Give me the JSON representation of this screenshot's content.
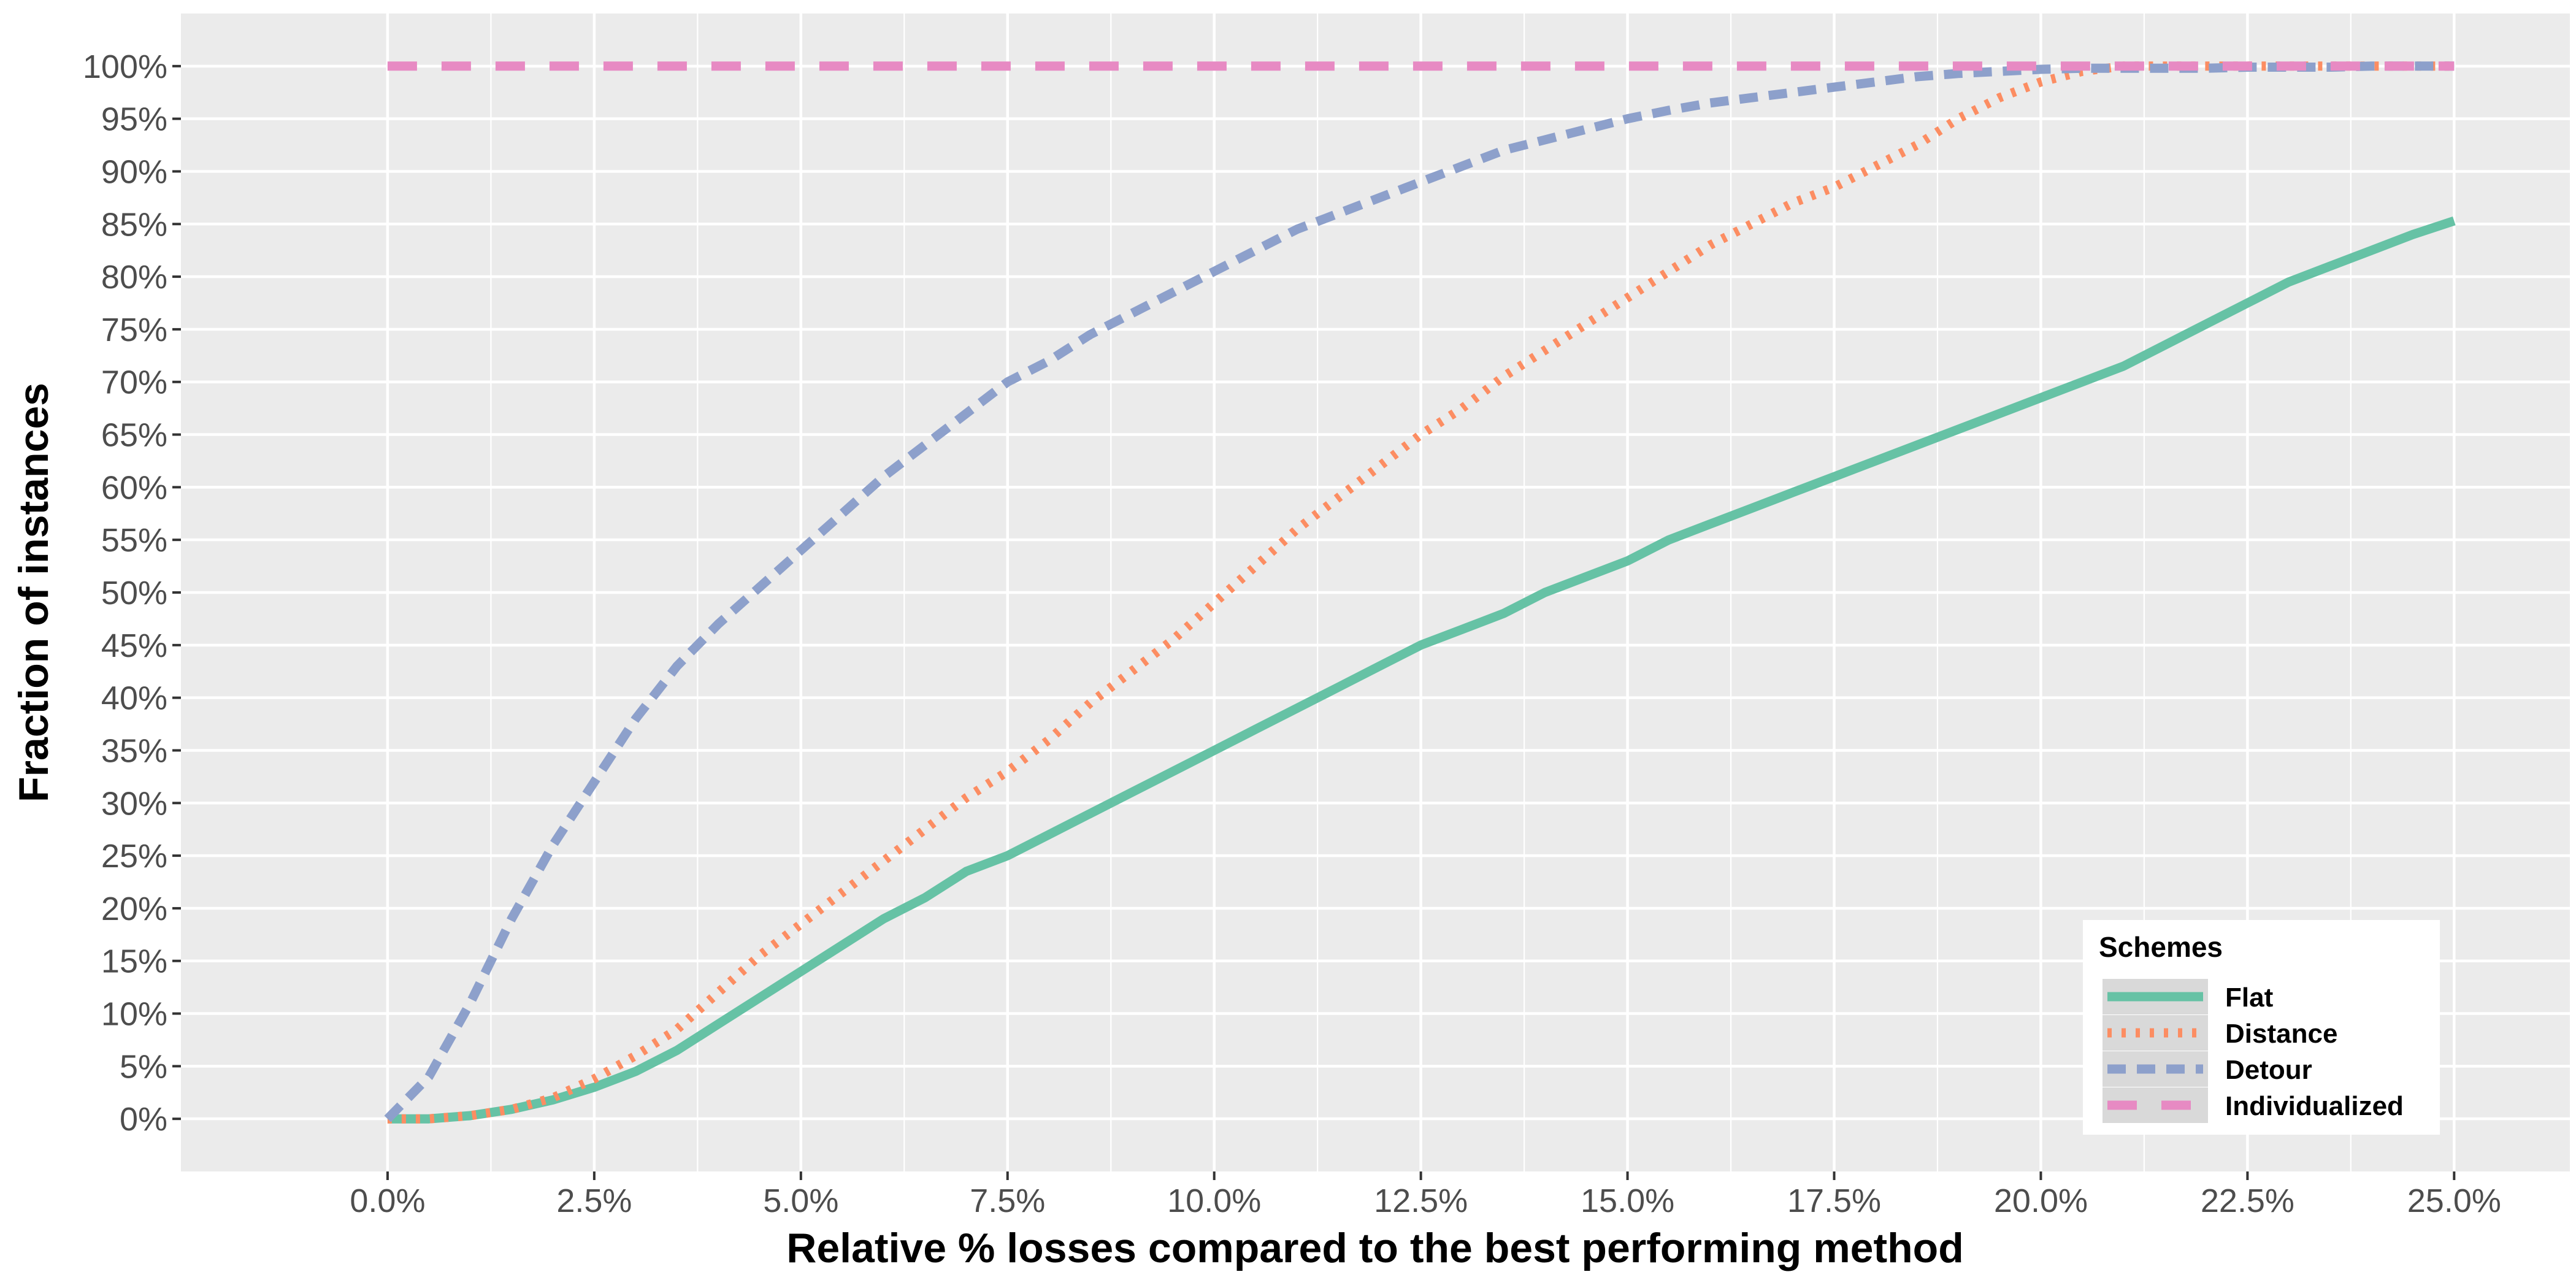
{
  "chart_data": {
    "type": "line",
    "xlabel": "Relative % losses compared to the best performing method",
    "ylabel": "Fraction of instances",
    "xlim": [
      -2.5,
      26.4
    ],
    "ylim": [
      -5,
      105
    ],
    "x_ticks": [
      0,
      2.5,
      5,
      7.5,
      10,
      12.5,
      15,
      17.5,
      20,
      22.5,
      25
    ],
    "x_tick_labels": [
      "0.0%",
      "2.5%",
      "5.0%",
      "7.5%",
      "10.0%",
      "12.5%",
      "15.0%",
      "17.5%",
      "20.0%",
      "22.5%",
      "25.0%"
    ],
    "y_ticks": [
      0,
      5,
      10,
      15,
      20,
      25,
      30,
      35,
      40,
      45,
      50,
      55,
      60,
      65,
      70,
      75,
      80,
      85,
      90,
      95,
      100
    ],
    "y_tick_labels": [
      "0%",
      "5%",
      "10%",
      "15%",
      "20%",
      "25%",
      "30%",
      "35%",
      "40%",
      "45%",
      "50%",
      "55%",
      "60%",
      "65%",
      "70%",
      "75%",
      "80%",
      "85%",
      "90%",
      "95%",
      "100%"
    ],
    "grid": true,
    "legend": {
      "title": "Schemes",
      "position": "bottom-right"
    },
    "series": [
      {
        "name": "Flat",
        "color": "#66c2a5",
        "dash": "solid",
        "x": [
          0,
          0.5,
          1,
          1.5,
          2,
          2.5,
          3,
          3.5,
          4,
          4.5,
          5,
          5.5,
          6,
          6.5,
          7,
          7.5,
          8,
          8.5,
          9,
          9.5,
          10,
          10.5,
          11,
          11.5,
          12,
          12.5,
          13,
          13.5,
          14,
          14.5,
          15,
          15.5,
          16,
          16.5,
          17,
          17.5,
          18,
          18.5,
          19,
          19.5,
          20,
          20.5,
          21,
          21.5,
          22,
          22.5,
          23,
          23.5,
          24,
          24.5,
          25
        ],
        "y": [
          0,
          0,
          0.3,
          0.9,
          1.8,
          3.0,
          4.5,
          6.5,
          9.0,
          11.5,
          14.0,
          16.5,
          19.0,
          21.0,
          23.5,
          25.0,
          27.0,
          29.0,
          31.0,
          33.0,
          35.0,
          37.0,
          39.0,
          41.0,
          43.0,
          45.0,
          46.5,
          48.0,
          50.0,
          51.5,
          53.0,
          55.0,
          56.5,
          58.0,
          59.5,
          61.0,
          62.5,
          64.0,
          65.5,
          67.0,
          68.5,
          70.0,
          71.5,
          73.5,
          75.5,
          77.5,
          79.5,
          81.0,
          82.5,
          84.0,
          85.3
        ]
      },
      {
        "name": "Distance",
        "color": "#fc8d62",
        "dash": "dotted",
        "x": [
          0,
          0.5,
          1,
          1.5,
          2,
          2.5,
          3,
          3.5,
          4,
          4.5,
          5,
          5.5,
          6,
          6.5,
          7,
          7.5,
          8,
          8.5,
          9,
          9.5,
          10,
          10.5,
          11,
          11.5,
          12,
          12.5,
          13,
          13.5,
          14,
          14.5,
          15,
          15.5,
          16,
          16.5,
          17,
          17.5,
          18,
          18.5,
          19,
          19.5,
          20,
          20.5,
          21,
          21.5,
          22,
          22.5,
          23,
          23.5,
          24,
          24.5,
          25
        ],
        "y": [
          0,
          0,
          0.3,
          0.9,
          2.0,
          3.8,
          6.0,
          8.5,
          12.0,
          15.5,
          18.5,
          21.5,
          24.5,
          27.5,
          30.5,
          33.0,
          36.0,
          39.5,
          42.5,
          45.5,
          49.0,
          52.5,
          56.0,
          59.0,
          62.0,
          65.0,
          67.5,
          70.5,
          73.0,
          75.5,
          78.0,
          80.5,
          83.0,
          85.0,
          87.0,
          88.5,
          90.5,
          92.5,
          95.0,
          97.0,
          98.5,
          99.5,
          100,
          100,
          100,
          100,
          100,
          100,
          100,
          100,
          100
        ]
      },
      {
        "name": "Detour",
        "color": "#8da0cb",
        "dash": "dashed",
        "x": [
          0,
          0.5,
          1,
          1.5,
          2,
          2.5,
          3,
          3.5,
          4,
          4.5,
          5,
          5.5,
          6,
          6.5,
          7,
          7.5,
          8,
          8.5,
          9,
          9.5,
          10,
          10.5,
          11,
          11.5,
          12,
          12.5,
          13,
          13.5,
          14,
          14.5,
          15,
          15.5,
          16,
          16.5,
          17,
          17.5,
          18,
          18.5,
          19,
          19.5,
          20,
          20.5,
          21,
          21.5,
          22,
          22.5,
          23,
          23.5,
          24,
          24.5,
          25
        ],
        "y": [
          0,
          4,
          11,
          19,
          26,
          32,
          38,
          43,
          47,
          50.5,
          54,
          57.5,
          61,
          64,
          67,
          70,
          72,
          74.5,
          76.5,
          78.5,
          80.5,
          82.5,
          84.5,
          86,
          87.5,
          89,
          90.5,
          92,
          93,
          94,
          95,
          95.8,
          96.5,
          97,
          97.5,
          98,
          98.5,
          99,
          99.3,
          99.5,
          99.7,
          99.8,
          99.8,
          99.8,
          99.8,
          99.9,
          99.9,
          99.9,
          100,
          100,
          100
        ]
      },
      {
        "name": "Individualized",
        "color": "#e78ac3",
        "dash": "longdash",
        "x": [
          0,
          25
        ],
        "y": [
          100,
          100
        ]
      }
    ]
  }
}
